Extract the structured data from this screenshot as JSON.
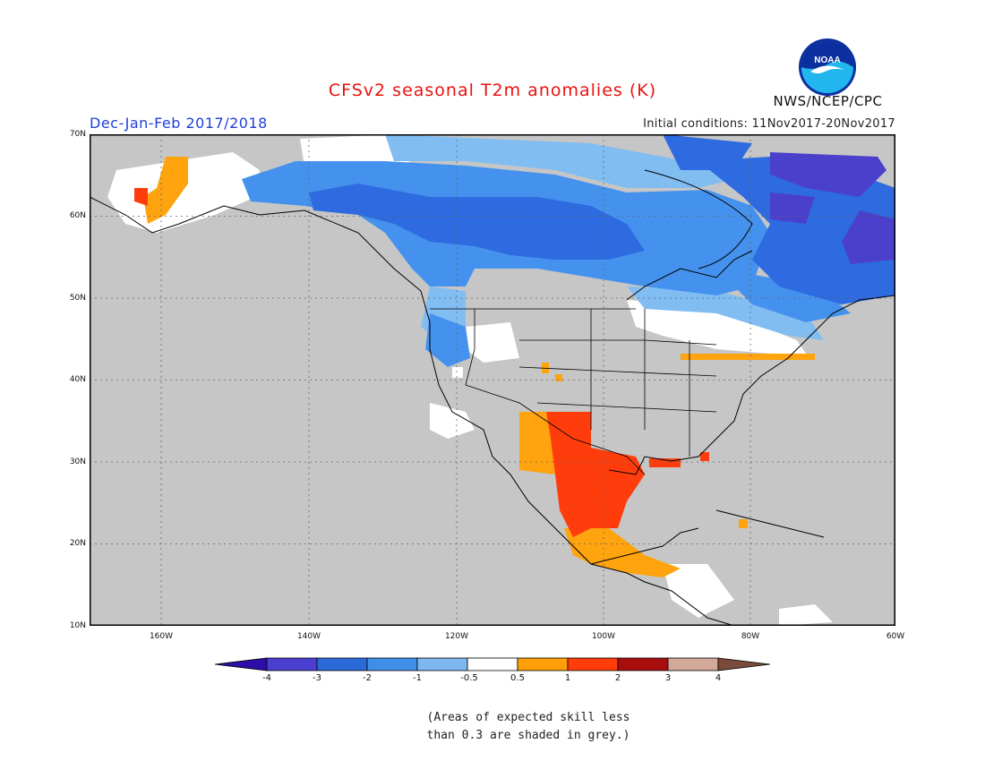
{
  "title": "CFSv2 seasonal T2m anomalies (K)",
  "period": "Dec-Jan-Feb 2017/2018",
  "initial_conditions": "Initial conditions: 11Nov2017-20Nov2017",
  "agency": "NWS/NCEP/CPC",
  "logo_text": "NOAA",
  "note_line1": "(Areas of expected skill less",
  "note_line2": "than 0.3 are shaded in grey.)",
  "lat_labels": [
    "70N",
    "60N",
    "50N",
    "40N",
    "30N",
    "20N",
    "10N"
  ],
  "lon_labels": [
    "160W",
    "140W",
    "120W",
    "100W",
    "80W",
    "60W"
  ],
  "colorbar": {
    "labels": [
      "-4",
      "-3",
      "-2",
      "-1",
      "-0.5",
      "0.5",
      "1",
      "2",
      "3",
      "4"
    ],
    "colors": [
      "#2d0ea8",
      "#4a3fd0",
      "#2a6ad8",
      "#3f8ee8",
      "#7fb8f0",
      "#ffffff",
      "#ff9f0a",
      "#ff3c0a",
      "#a80e0e",
      "#d2a898",
      "#7a4a3a"
    ]
  },
  "colors": {
    "grey": "#c6c6c6",
    "deep_blue": "#2e6ae0",
    "mid_blue": "#4592ee",
    "light_blue": "#82bdf2",
    "purple": "#4a40cc",
    "orange": "#ffa30e",
    "red": "#ff3d0c"
  }
}
